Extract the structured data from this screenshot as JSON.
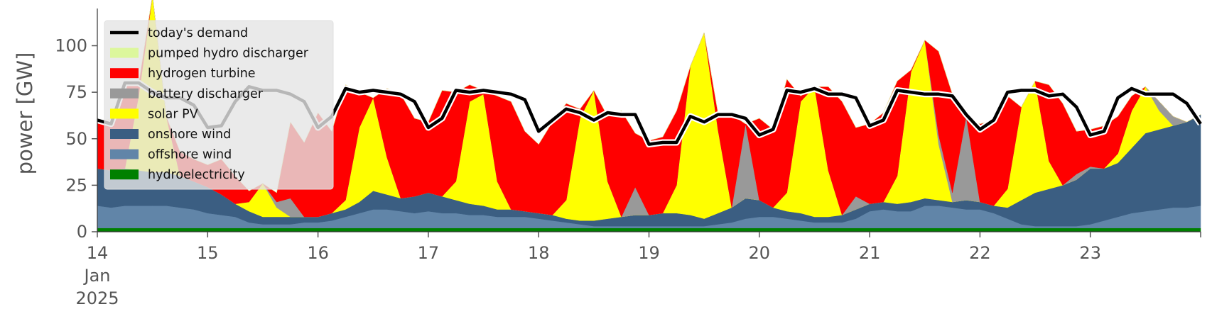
{
  "chart_data": {
    "type": "area",
    "ylabel": "power [GW]",
    "xlabel": "",
    "ylim": [
      0,
      120
    ],
    "xlim": [
      14,
      24
    ],
    "y_ticks": [
      0,
      25,
      50,
      75,
      100
    ],
    "y_tick_labels": [
      "0",
      "25",
      "50",
      "75",
      "100"
    ],
    "x_ticks": [
      14,
      15,
      16,
      17,
      18,
      19,
      20,
      21,
      22,
      23
    ],
    "x_tick_labels": [
      "14\nJan\n2025",
      "15",
      "16",
      "17",
      "18",
      "19",
      "20",
      "21",
      "22",
      "23"
    ],
    "grid": false,
    "stacked": true,
    "legend_position": "upper left",
    "x": [
      14.0,
      14.125,
      14.25,
      14.375,
      14.5,
      14.625,
      14.75,
      14.875,
      15.0,
      15.125,
      15.25,
      15.375,
      15.5,
      15.625,
      15.75,
      15.875,
      16.0,
      16.125,
      16.25,
      16.375,
      16.5,
      16.625,
      16.75,
      16.875,
      17.0,
      17.125,
      17.25,
      17.375,
      17.5,
      17.625,
      17.75,
      17.875,
      18.0,
      18.125,
      18.25,
      18.375,
      18.5,
      18.625,
      18.75,
      18.875,
      19.0,
      19.125,
      19.25,
      19.375,
      19.5,
      19.625,
      19.75,
      19.875,
      20.0,
      20.125,
      20.25,
      20.375,
      20.5,
      20.625,
      20.75,
      20.875,
      21.0,
      21.125,
      21.25,
      21.375,
      21.5,
      21.625,
      21.75,
      21.875,
      22.0,
      22.125,
      22.25,
      22.375,
      22.5,
      22.625,
      22.75,
      22.875,
      23.0,
      23.125,
      23.25,
      23.375,
      23.5,
      23.625,
      23.75,
      23.875,
      24.0
    ],
    "series": [
      {
        "name": "hydroelectricity",
        "color": "#008000",
        "values": [
          2,
          2,
          2,
          2,
          2,
          2,
          2,
          2,
          2,
          2,
          2,
          2,
          2,
          2,
          2,
          2,
          2,
          2,
          2,
          2,
          2,
          2,
          2,
          2,
          2,
          2,
          2,
          2,
          2,
          2,
          2,
          2,
          2,
          2,
          2,
          2,
          2,
          2,
          2,
          2,
          2,
          2,
          2,
          2,
          2,
          2,
          2,
          2,
          2,
          2,
          2,
          2,
          2,
          2,
          2,
          2,
          2,
          2,
          2,
          2,
          2,
          2,
          2,
          2,
          2,
          2,
          2,
          2,
          2,
          2,
          2,
          2,
          2,
          2,
          2,
          2,
          2,
          2,
          2,
          2,
          2
        ]
      },
      {
        "name": "offshore wind",
        "color": "#6185a8",
        "values": [
          12,
          11,
          12,
          12,
          12,
          12,
          11,
          10,
          8,
          7,
          6,
          3,
          2,
          2,
          2,
          3,
          3,
          4,
          6,
          8,
          10,
          10,
          9,
          8,
          9,
          8,
          8,
          7,
          7,
          6,
          6,
          6,
          5,
          4,
          3,
          2,
          1,
          1,
          1,
          1,
          1,
          1,
          1,
          1,
          1,
          2,
          3,
          5,
          6,
          6,
          5,
          4,
          3,
          3,
          3,
          5,
          9,
          10,
          9,
          9,
          12,
          12,
          11,
          10,
          10,
          8,
          5,
          2,
          1,
          1,
          1,
          1,
          2,
          4,
          6,
          8,
          9,
          10,
          11,
          11,
          12
        ]
      },
      {
        "name": "onshore wind",
        "color": "#3b5e82",
        "values": [
          20,
          20,
          20,
          19,
          18,
          18,
          17,
          15,
          14,
          11,
          7,
          6,
          4,
          4,
          4,
          3,
          3,
          4,
          4,
          6,
          10,
          8,
          7,
          9,
          10,
          9,
          7,
          6,
          5,
          4,
          4,
          3,
          3,
          3,
          2,
          2,
          3,
          4,
          5,
          6,
          6,
          7,
          7,
          6,
          4,
          6,
          8,
          11,
          9,
          5,
          4,
          4,
          3,
          3,
          4,
          5,
          4,
          4,
          4,
          5,
          4,
          3,
          3,
          5,
          4,
          4,
          6,
          13,
          18,
          20,
          22,
          25,
          30,
          28,
          29,
          35,
          42,
          43,
          44,
          46,
          49
        ]
      },
      {
        "name": "solar PV",
        "color": "#ffff00",
        "values": [
          0,
          0,
          0,
          40,
          95,
          30,
          0,
          0,
          0,
          0,
          0,
          5,
          18,
          5,
          0,
          0,
          0,
          0,
          5,
          40,
          50,
          20,
          0,
          0,
          0,
          0,
          10,
          55,
          60,
          15,
          0,
          0,
          0,
          0,
          10,
          55,
          70,
          20,
          0,
          0,
          0,
          0,
          15,
          80,
          100,
          45,
          0,
          0,
          0,
          0,
          10,
          60,
          70,
          25,
          0,
          0,
          0,
          0,
          15,
          70,
          85,
          30,
          0,
          0,
          0,
          0,
          10,
          50,
          60,
          15,
          0,
          0,
          0,
          0,
          5,
          20,
          25,
          10,
          0,
          0,
          0
        ]
      },
      {
        "name": "battery discharger",
        "color": "#999999",
        "values": [
          0,
          0,
          0,
          0,
          0,
          0,
          0,
          0,
          0,
          0,
          0,
          0,
          0,
          3,
          10,
          0,
          0,
          0,
          0,
          0,
          0,
          0,
          0,
          0,
          0,
          0,
          0,
          0,
          0,
          0,
          0,
          0,
          0,
          0,
          0,
          0,
          0,
          0,
          0,
          15,
          0,
          0,
          0,
          0,
          0,
          0,
          0,
          40,
          0,
          0,
          0,
          0,
          0,
          0,
          0,
          7,
          0,
          0,
          0,
          0,
          0,
          5,
          5,
          45,
          0,
          0,
          0,
          0,
          0,
          0,
          0,
          3,
          1,
          0,
          0,
          0,
          0,
          5,
          5,
          0,
          0
        ]
      },
      {
        "name": "hydrogen turbine",
        "color": "#ff0000",
        "values": [
          27,
          27,
          47,
          7,
          0,
          0,
          13,
          12,
          12,
          19,
          15,
          6,
          0,
          5,
          41,
          40,
          56,
          44,
          62,
          19,
          0,
          37,
          56,
          42,
          38,
          57,
          48,
          9,
          2,
          46,
          58,
          43,
          37,
          50,
          52,
          5,
          0,
          35,
          57,
          29,
          40,
          41,
          40,
          0,
          0,
          9,
          50,
          0,
          44,
          42,
          61,
          3,
          0,
          45,
          61,
          37,
          43,
          48,
          51,
          1,
          0,
          45,
          53,
          0,
          42,
          46,
          50,
          0,
          0,
          41,
          44,
          23,
          20,
          23,
          20,
          8,
          0,
          0,
          0,
          0,
          0
        ]
      },
      {
        "name": "pumped hydro discharger",
        "color": "#dcf79c",
        "values": [
          0,
          0,
          0,
          0,
          0,
          0,
          0,
          0,
          0,
          0,
          0,
          0,
          0,
          0,
          0,
          0,
          0,
          0,
          0,
          0,
          0,
          0,
          0,
          0,
          0,
          0,
          0,
          0,
          0,
          0,
          0,
          0,
          0,
          0,
          0,
          0,
          0,
          0,
          0,
          0,
          0,
          0,
          0,
          0,
          0,
          0,
          0,
          0,
          0,
          0,
          0,
          0,
          0,
          0,
          0,
          0,
          0,
          0,
          0,
          0,
          0,
          0,
          0,
          0,
          0,
          0,
          0,
          0,
          0,
          0,
          0,
          0,
          0,
          0,
          0,
          0,
          0,
          0,
          0,
          0,
          0
        ]
      }
    ],
    "demand": {
      "name": "today's demand",
      "color": "#000000",
      "values": [
        60,
        58,
        80,
        80,
        75,
        72,
        72,
        68,
        56,
        57,
        70,
        78,
        76,
        76,
        74,
        70,
        56,
        62,
        77,
        75,
        76,
        75,
        74,
        70,
        56,
        61,
        76,
        75,
        76,
        75,
        74,
        71,
        54,
        60,
        66,
        64,
        60,
        64,
        63,
        63,
        47,
        48,
        48,
        62,
        59,
        63,
        63,
        61,
        52,
        55,
        76,
        75,
        77,
        74,
        74,
        72,
        57,
        60,
        76,
        75,
        74,
        74,
        73,
        63,
        55,
        60,
        75,
        76,
        76,
        73,
        74,
        67,
        52,
        54,
        72,
        77,
        74,
        74,
        74,
        69,
        58
      ]
    },
    "legend": [
      {
        "label": "today's demand",
        "kind": "line",
        "color": "#000000"
      },
      {
        "label": "pumped hydro discharger",
        "kind": "patch",
        "color": "#dcf79c"
      },
      {
        "label": "hydrogen turbine",
        "kind": "patch",
        "color": "#ff0000"
      },
      {
        "label": "battery discharger",
        "kind": "patch",
        "color": "#999999"
      },
      {
        "label": "solar PV",
        "kind": "patch",
        "color": "#ffff00"
      },
      {
        "label": "onshore wind",
        "kind": "patch",
        "color": "#3b5e82"
      },
      {
        "label": "offshore wind",
        "kind": "patch",
        "color": "#6185a8"
      },
      {
        "label": "hydroelectricity",
        "kind": "patch",
        "color": "#008000"
      }
    ]
  }
}
